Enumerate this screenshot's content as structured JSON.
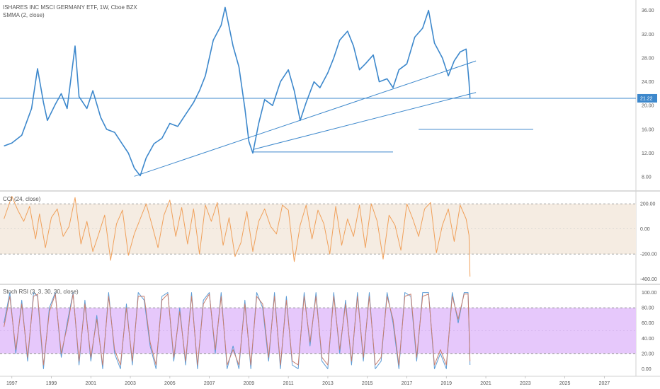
{
  "header": {
    "title": "ISHARES INC MSCI GERMANY ETF, 1W, Cboe BZX",
    "indicator": "SMMA (2, close)"
  },
  "panes": {
    "cci_label": "CCI (24, close)",
    "stoch_label": "Stoch RSI (3, 3, 30, 30, close)"
  },
  "colors": {
    "price": "#3d88cc",
    "cci": "#f0a05a",
    "cci_band": "#f5ece2",
    "stoch_k": "#5b9bd5",
    "stoch_d": "#c77e6e",
    "stoch_band": "#e6c8fb",
    "price_tag": "#3d88cc"
  },
  "chart_data": [
    {
      "type": "line",
      "name": "price",
      "y_ticks": [
        "36.00",
        "32.00",
        "28.00",
        "24.00",
        "20.00",
        "16.00",
        "12.00",
        "8.00"
      ],
      "ylim": [
        6,
        37.5
      ],
      "last_price": "21.22",
      "x_ticks": [
        "1997",
        "1999",
        "2001",
        "2003",
        "2005",
        "2007",
        "2009",
        "2011",
        "2013",
        "2015",
        "2017",
        "2019",
        "2021",
        "2023",
        "2025",
        "2027"
      ],
      "xlim": [
        1996.4,
        2028.6
      ],
      "series": [
        {
          "x": [
            1996.6,
            1997.0,
            1997.5,
            1998.0,
            1998.3,
            1998.6,
            1998.8,
            1999.2,
            1999.5,
            1999.8,
            2000.2,
            2000.4,
            2000.8,
            2001.1,
            2001.5,
            2001.8,
            2002.2,
            2002.6,
            2002.9,
            2003.2,
            2003.5,
            2003.8,
            2004.2,
            2004.6,
            2005.0,
            2005.4,
            2005.8,
            2006.2,
            2006.5,
            2006.8,
            2007.2,
            2007.6,
            2007.8,
            2008.2,
            2008.5,
            2008.8,
            2009.0,
            2009.2,
            2009.5,
            2009.8,
            2010.2,
            2010.6,
            2011.0,
            2011.3,
            2011.6,
            2011.9,
            2012.3,
            2012.6,
            2013.0,
            2013.3,
            2013.6,
            2014.0,
            2014.3,
            2014.6,
            2014.9,
            2015.3,
            2015.6,
            2016.0,
            2016.3,
            2016.6,
            2017.0,
            2017.4,
            2017.8,
            2018.1,
            2018.4,
            2018.8,
            2019.1,
            2019.4,
            2019.7,
            2020.0,
            2020.15,
            2020.2
          ],
          "values": [
            13.2,
            13.7,
            15.0,
            19.5,
            26.2,
            20.5,
            17.5,
            20.2,
            22.0,
            19.5,
            30.0,
            21.5,
            19.5,
            22.5,
            18.0,
            16.0,
            15.5,
            13.5,
            12.0,
            9.5,
            8.2,
            11.2,
            13.6,
            14.5,
            17.0,
            16.5,
            18.5,
            20.5,
            22.5,
            25.0,
            31.0,
            33.5,
            36.5,
            30.0,
            26.5,
            19.5,
            14.0,
            12.0,
            17.0,
            21.0,
            20.0,
            24.0,
            26.0,
            22.5,
            17.5,
            20.5,
            24.0,
            23.0,
            25.5,
            28.0,
            31.0,
            32.5,
            30.0,
            26.0,
            27.0,
            28.5,
            24.0,
            24.5,
            23.0,
            26.0,
            27.0,
            31.5,
            33.0,
            36.0,
            30.5,
            28.0,
            25.0,
            27.5,
            29.0,
            29.5,
            24.0,
            21.2
          ]
        }
      ],
      "drawings": [
        {
          "from": {
            "x": 2003.2,
            "y": 8.1
          },
          "to": {
            "x": 2020.5,
            "y": 27.5
          }
        },
        {
          "from": {
            "x": 2009.2,
            "y": 12.6
          },
          "to": {
            "x": 2020.5,
            "y": 22.2
          }
        },
        {
          "from": {
            "x": 2009.2,
            "y": 12.2
          },
          "to": {
            "x": 2016.3,
            "y": 12.2
          }
        },
        {
          "from": {
            "x": 2017.6,
            "y": 16.0
          },
          "to": {
            "x": 2023.4,
            "y": 16.0
          }
        }
      ]
    },
    {
      "type": "line",
      "name": "CCI",
      "y_ticks": [
        "200.00",
        "0.00",
        "-200.00",
        "-400.00"
      ],
      "ylim": [
        -430,
        280
      ],
      "band": [
        -200,
        200
      ],
      "series": [
        {
          "x": [
            1996.6,
            1997.0,
            1997.3,
            1997.6,
            1997.9,
            1998.2,
            1998.4,
            1998.7,
            1999.0,
            1999.3,
            1999.6,
            1999.9,
            2000.2,
            2000.5,
            2000.8,
            2001.1,
            2001.4,
            2001.7,
            2002.0,
            2002.3,
            2002.6,
            2002.9,
            2003.2,
            2003.5,
            2003.8,
            2004.1,
            2004.4,
            2004.7,
            2005.0,
            2005.3,
            2005.6,
            2005.9,
            2006.2,
            2006.5,
            2006.8,
            2007.1,
            2007.4,
            2007.7,
            2008.0,
            2008.3,
            2008.6,
            2008.9,
            2009.2,
            2009.5,
            2009.8,
            2010.1,
            2010.4,
            2010.7,
            2011.0,
            2011.3,
            2011.6,
            2011.9,
            2012.2,
            2012.5,
            2012.8,
            2013.1,
            2013.4,
            2013.7,
            2014.0,
            2014.3,
            2014.6,
            2014.9,
            2015.2,
            2015.5,
            2015.8,
            2016.1,
            2016.4,
            2016.7,
            2017.0,
            2017.3,
            2017.6,
            2017.9,
            2018.2,
            2018.5,
            2018.8,
            2019.1,
            2019.4,
            2019.7,
            2020.0,
            2020.15,
            2020.2
          ],
          "values": [
            80,
            260,
            150,
            60,
            180,
            -80,
            120,
            -150,
            90,
            160,
            -60,
            20,
            250,
            -120,
            60,
            -180,
            -40,
            110,
            -250,
            40,
            150,
            -210,
            -40,
            80,
            200,
            30,
            -150,
            110,
            230,
            -60,
            170,
            -120,
            160,
            -200,
            190,
            60,
            210,
            -130,
            90,
            -220,
            -110,
            140,
            -180,
            60,
            160,
            20,
            -40,
            190,
            150,
            -260,
            30,
            190,
            -80,
            150,
            40,
            -200,
            180,
            -130,
            80,
            -60,
            190,
            -150,
            200,
            60,
            -240,
            110,
            30,
            -170,
            200,
            80,
            -60,
            160,
            210,
            -190,
            30,
            160,
            -100,
            190,
            80,
            -50,
            -380
          ]
        }
      ]
    },
    {
      "type": "line",
      "name": "Stoch RSI",
      "y_ticks": [
        "100.00",
        "80.00",
        "60.00",
        "40.00",
        "20.00",
        "0.00"
      ],
      "ylim": [
        -8,
        108
      ],
      "band": [
        20,
        80
      ],
      "series": [
        {
          "x": [
            1996.6,
            1996.9,
            1997.2,
            1997.5,
            1997.8,
            1998.1,
            1998.3,
            1998.6,
            1998.9,
            1999.2,
            1999.5,
            1999.8,
            2000.1,
            2000.4,
            2000.7,
            2001.0,
            2001.3,
            2001.6,
            2001.9,
            2002.2,
            2002.5,
            2002.8,
            2003.1,
            2003.4,
            2003.7,
            2004.0,
            2004.3,
            2004.6,
            2004.9,
            2005.2,
            2005.5,
            2005.8,
            2006.1,
            2006.4,
            2006.7,
            2007.0,
            2007.3,
            2007.6,
            2007.9,
            2008.2,
            2008.5,
            2008.8,
            2009.1,
            2009.4,
            2009.7,
            2010.0,
            2010.3,
            2010.6,
            2010.9,
            2011.2,
            2011.5,
            2011.8,
            2012.1,
            2012.4,
            2012.7,
            2013.0,
            2013.3,
            2013.6,
            2013.9,
            2014.2,
            2014.5,
            2014.8,
            2015.1,
            2015.4,
            2015.7,
            2016.0,
            2016.3,
            2016.6,
            2016.9,
            2017.2,
            2017.5,
            2017.8,
            2018.1,
            2018.4,
            2018.7,
            2019.0,
            2019.3,
            2019.6,
            2019.9,
            2020.1,
            2020.2
          ],
          "values": [
            60,
            100,
            20,
            90,
            10,
            100,
            95,
            0,
            80,
            100,
            15,
            60,
            100,
            5,
            90,
            10,
            70,
            0,
            100,
            20,
            0,
            85,
            5,
            100,
            90,
            30,
            0,
            95,
            100,
            10,
            80,
            5,
            100,
            0,
            90,
            100,
            20,
            100,
            0,
            30,
            0,
            90,
            0,
            100,
            80,
            10,
            100,
            0,
            95,
            5,
            0,
            100,
            30,
            100,
            10,
            0,
            100,
            20,
            90,
            5,
            100,
            10,
            100,
            0,
            10,
            100,
            60,
            0,
            100,
            95,
            10,
            100,
            100,
            0,
            20,
            0,
            100,
            60,
            100,
            100,
            5
          ]
        },
        {
          "x": [
            1996.6,
            1996.9,
            1997.2,
            1997.5,
            1997.8,
            1998.1,
            1998.3,
            1998.6,
            1998.9,
            1999.2,
            1999.5,
            1999.8,
            2000.1,
            2000.4,
            2000.7,
            2001.0,
            2001.3,
            2001.6,
            2001.9,
            2002.2,
            2002.5,
            2002.8,
            2003.1,
            2003.4,
            2003.7,
            2004.0,
            2004.3,
            2004.6,
            2004.9,
            2005.2,
            2005.5,
            2005.8,
            2006.1,
            2006.4,
            2006.7,
            2007.0,
            2007.3,
            2007.6,
            2007.9,
            2008.2,
            2008.5,
            2008.8,
            2009.1,
            2009.4,
            2009.7,
            2010.0,
            2010.3,
            2010.6,
            2010.9,
            2011.2,
            2011.5,
            2011.8,
            2012.1,
            2012.4,
            2012.7,
            2013.0,
            2013.3,
            2013.6,
            2013.9,
            2014.2,
            2014.5,
            2014.8,
            2015.1,
            2015.4,
            2015.7,
            2016.0,
            2016.3,
            2016.6,
            2016.9,
            2017.2,
            2017.5,
            2017.8,
            2018.1,
            2018.4,
            2018.7,
            2019.0,
            2019.3,
            2019.6,
            2019.9,
            2020.1,
            2020.2
          ],
          "values": [
            55,
            95,
            25,
            85,
            15,
            95,
            98,
            5,
            75,
            98,
            20,
            55,
            98,
            10,
            85,
            15,
            65,
            5,
            95,
            25,
            5,
            80,
            10,
            95,
            95,
            35,
            5,
            90,
            98,
            15,
            75,
            10,
            95,
            5,
            85,
            98,
            25,
            95,
            5,
            25,
            5,
            85,
            5,
            95,
            85,
            15,
            95,
            5,
            90,
            10,
            5,
            95,
            35,
            95,
            15,
            5,
            95,
            25,
            85,
            10,
            95,
            15,
            95,
            5,
            15,
            95,
            65,
            5,
            95,
            98,
            15,
            95,
            98,
            5,
            25,
            5,
            95,
            65,
            98,
            98,
            10
          ]
        }
      ]
    }
  ]
}
